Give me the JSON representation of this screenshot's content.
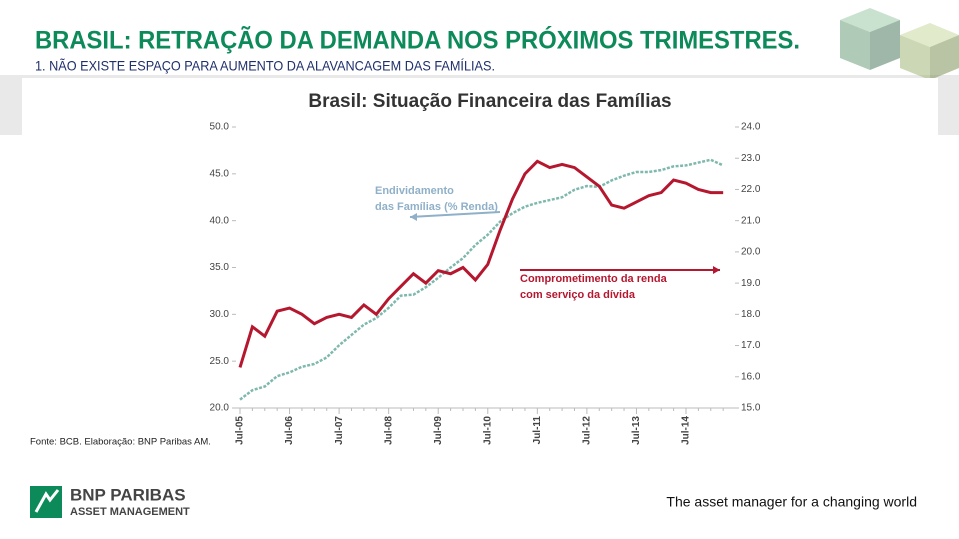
{
  "slide": {
    "title": "BRASIL: RETRAÇÃO DA DEMANDA NOS PRÓXIMOS TRIMESTRES.",
    "subtitle": "1. NÃO EXISTE ESPAÇO PARA AUMENTO DA ALAVANCAGEM DAS FAMÍLIAS.",
    "source": "Fonte: BCB. Elaboração: BNP Paribas AM.",
    "logo": [
      "BNP PARIBAS",
      "ASSET MANAGEMENT"
    ],
    "tagline": "The asset manager for a changing world"
  },
  "chart_data": {
    "type": "line",
    "title": "Brasil: Situação Financeira das Famílias",
    "categories": [
      "Jul-05",
      null,
      null,
      null,
      "Jul-06",
      null,
      null,
      null,
      "Jul-07",
      null,
      null,
      null,
      "Jul-08",
      null,
      null,
      null,
      "Jul-09",
      null,
      null,
      null,
      "Jul-10",
      null,
      null,
      null,
      "Jul-11",
      null,
      null,
      null,
      "Jul-12",
      null,
      null,
      null,
      "Jul-13",
      null,
      null,
      null,
      "Jul-14",
      null,
      null,
      null
    ],
    "series": [
      {
        "color": "#7fb8ad",
        "axis": "y",
        "values": [
          20.9,
          21.9,
          22.3,
          23.4,
          23.8,
          24.4,
          24.7,
          25.4,
          26.7,
          27.8,
          28.9,
          29.6,
          30.7,
          32.0,
          32.1,
          32.9,
          33.9,
          35.0,
          36.0,
          37.4,
          38.5,
          39.9,
          40.8,
          41.5,
          41.9,
          42.2,
          42.5,
          43.3,
          43.7,
          43.6,
          44.3,
          44.8,
          45.2,
          45.2,
          45.4,
          45.8,
          45.9,
          46.2,
          46.5,
          45.9
        ]
      },
      {
        "color": "#b5172f",
        "axis": "y2",
        "values": [
          16.3,
          17.6,
          17.3,
          18.1,
          18.2,
          18.0,
          17.7,
          17.9,
          18.0,
          17.9,
          18.3,
          18.0,
          18.5,
          18.9,
          19.3,
          19.0,
          19.4,
          19.3,
          19.5,
          19.1,
          19.6,
          20.7,
          21.7,
          22.5,
          22.9,
          22.7,
          22.8,
          22.7,
          22.4,
          22.1,
          21.5,
          21.4,
          21.6,
          21.8,
          21.9,
          22.3,
          22.2,
          22.0,
          21.9,
          21.9
        ]
      }
    ],
    "annotations": [
      {
        "lines": [
          "Endividamento",
          "das Famílias (% Renda)"
        ],
        "color": "#8fb0c8"
      },
      {
        "lines": [
          "Comprometimento da renda",
          "com serviço da dívida"
        ],
        "color": "#b5172f"
      }
    ],
    "ylim": [
      20,
      50
    ],
    "yticks": [
      {
        "value": 20,
        "label": "20.0"
      },
      {
        "value": 25,
        "label": "25.0"
      },
      {
        "value": 30,
        "label": "30.0"
      },
      {
        "value": 35,
        "label": "35.0"
      },
      {
        "value": 40,
        "label": "40.0"
      },
      {
        "value": 45,
        "label": "45.0"
      },
      {
        "value": 50,
        "label": "50.0"
      }
    ],
    "y2lim": [
      15,
      24
    ],
    "y2ticks": [
      {
        "value": 15,
        "label": "15.0"
      },
      {
        "value": 16,
        "label": "16.0"
      },
      {
        "value": 17,
        "label": "17.0"
      },
      {
        "value": 18,
        "label": "18.0"
      },
      {
        "value": 19,
        "label": "19.0"
      },
      {
        "value": 20,
        "label": "20.0"
      },
      {
        "value": 21,
        "label": "21.0"
      },
      {
        "value": 22,
        "label": "22.0"
      },
      {
        "value": 23,
        "label": "23.0"
      },
      {
        "value": 24,
        "label": "24.0"
      }
    ],
    "grid": false
  }
}
